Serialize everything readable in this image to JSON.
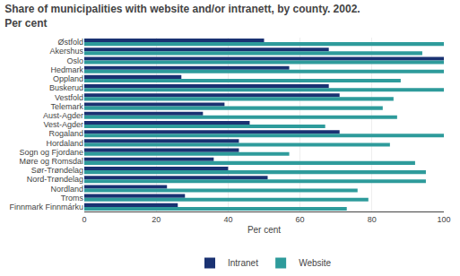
{
  "chart_data": {
    "type": "bar",
    "orientation": "horizontal",
    "title": "Share of municipalities with website and/or intranett, by county. 2002.",
    "subtitle": "Per cent",
    "xlabel": "Per cent",
    "categories": [
      "Østfold",
      "Akershus",
      "Oslo",
      "Hedmark",
      "Oppland",
      "Buskerud",
      "Vestfold",
      "Telemark",
      "Aust-Agder",
      "Vest-Agder",
      "Rogaland",
      "Hordaland",
      "Sogn og Fjordane",
      "Møre og Romsdal",
      "Sør-Trøndelag",
      "Nord-Trøndelag",
      "Nordland",
      "Troms",
      "Finnmark Finnmárku"
    ],
    "series": [
      {
        "name": "Intranet",
        "color": "#1a3272",
        "values": [
          50,
          68,
          100,
          57,
          27,
          68,
          71,
          39,
          33,
          46,
          71,
          43,
          43,
          36,
          40,
          51,
          23,
          28,
          26
        ]
      },
      {
        "name": "Website",
        "color": "#2e9b9b",
        "values": [
          100,
          94,
          100,
          100,
          88,
          100,
          86,
          83,
          87,
          67,
          100,
          85,
          57,
          92,
          95,
          95,
          76,
          79,
          73
        ]
      }
    ],
    "xlim": [
      0,
      100
    ],
    "xticks": [
      0,
      20,
      40,
      60,
      80,
      100
    ],
    "grid": true,
    "legend": "bottom"
  }
}
